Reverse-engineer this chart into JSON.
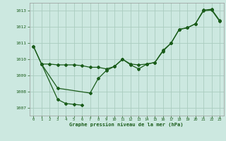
{
  "title": "Graphe pression niveau de la mer (hPa)",
  "background_color": "#cce8e0",
  "grid_color": "#aaccbf",
  "line_color": "#1a5c1a",
  "xlim": [
    -0.5,
    23.5
  ],
  "ylim": [
    1006.5,
    1013.5
  ],
  "yticks": [
    1007,
    1008,
    1009,
    1010,
    1011,
    1012,
    1013
  ],
  "xticks": [
    0,
    1,
    2,
    3,
    4,
    5,
    6,
    7,
    8,
    9,
    10,
    11,
    12,
    13,
    14,
    15,
    16,
    17,
    18,
    19,
    20,
    21,
    22,
    23
  ],
  "series1_x": [
    0,
    1,
    2,
    3,
    4,
    5,
    6,
    7,
    8,
    9,
    10,
    11,
    12,
    13,
    14,
    15,
    16,
    17,
    18,
    19,
    20,
    21,
    22,
    23
  ],
  "series1_y": [
    1010.8,
    1009.7,
    1009.7,
    1009.65,
    1009.65,
    1009.65,
    1009.6,
    1009.5,
    1009.5,
    1009.4,
    1009.55,
    1010.0,
    1009.7,
    1009.65,
    1009.7,
    1009.8,
    1010.5,
    1011.0,
    1011.85,
    1011.95,
    1012.2,
    1013.0,
    1013.05,
    1012.35
  ],
  "series2_x": [
    0,
    1,
    3,
    7,
    8,
    9,
    10,
    11,
    12,
    13,
    14,
    15,
    16,
    17,
    18,
    19,
    20,
    21,
    22,
    23
  ],
  "series2_y": [
    1010.8,
    1009.7,
    1008.2,
    1007.9,
    1008.8,
    1009.3,
    1009.55,
    1010.0,
    1009.65,
    1009.4,
    1009.7,
    1009.8,
    1010.55,
    1011.0,
    1011.85,
    1011.95,
    1012.2,
    1013.05,
    1013.1,
    1012.4
  ],
  "series3_x": [
    1,
    3,
    4,
    5,
    6
  ],
  "series3_y": [
    1009.7,
    1007.5,
    1007.25,
    1007.2,
    1007.15
  ]
}
